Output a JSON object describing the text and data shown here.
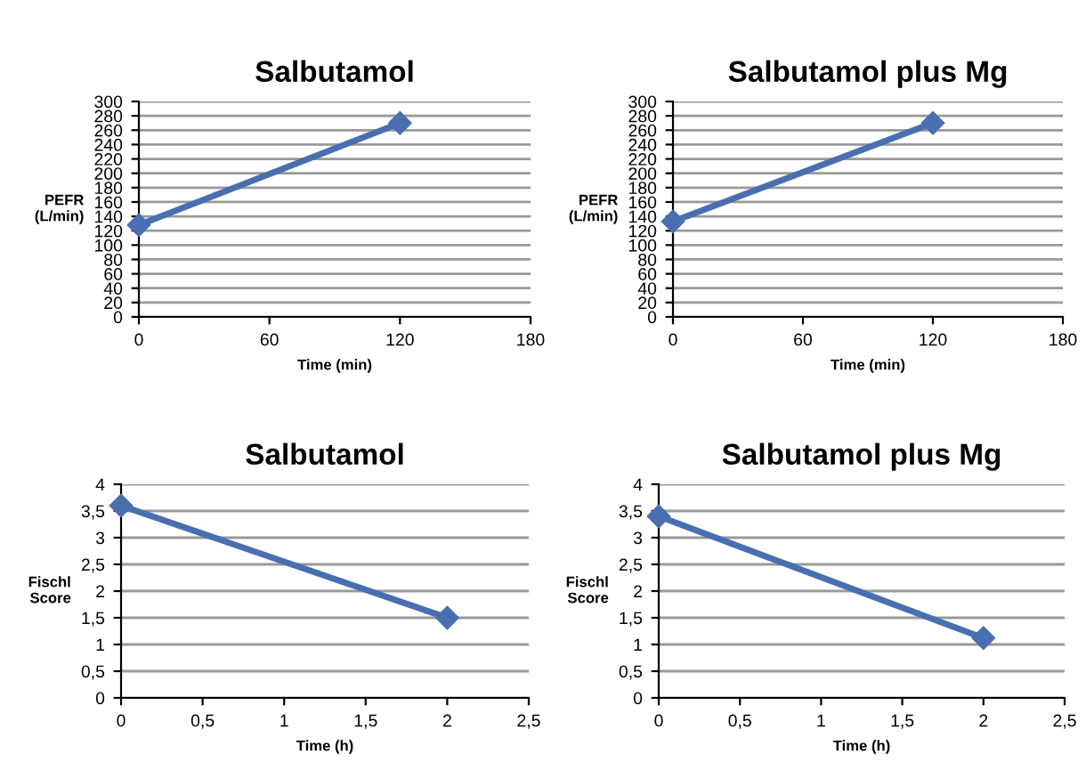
{
  "chart_data": [
    {
      "type": "line",
      "title": "Salbutamol",
      "xlabel": "Time (min)",
      "ylabel": "PEFR\n(L/min)",
      "x": [
        0,
        120
      ],
      "values": [
        128,
        270
      ],
      "color": "#4a6fb0",
      "marker": "diamond",
      "xlim": [
        0,
        180
      ],
      "xticks": [
        0,
        60,
        120,
        180
      ],
      "ylim": [
        0,
        300
      ],
      "yticks": [
        0,
        20,
        40,
        60,
        80,
        100,
        120,
        140,
        160,
        180,
        200,
        220,
        240,
        260,
        280,
        300
      ],
      "grid": "y"
    },
    {
      "type": "line",
      "title": "Salbutamol plus Mg",
      "xlabel": "Time (min)",
      "ylabel": "PEFR\n(L/min)",
      "x": [
        0,
        120
      ],
      "values": [
        133,
        270
      ],
      "color": "#4a6fb0",
      "marker": "diamond",
      "xlim": [
        0,
        180
      ],
      "xticks": [
        0,
        60,
        120,
        180
      ],
      "ylim": [
        0,
        300
      ],
      "yticks": [
        0,
        20,
        40,
        60,
        80,
        100,
        120,
        140,
        160,
        180,
        200,
        220,
        240,
        260,
        280,
        300
      ],
      "grid": "y"
    },
    {
      "type": "line",
      "title": "Salbutamol",
      "xlabel": "Time (h)",
      "ylabel": "Fischl\nScore",
      "x": [
        0,
        2
      ],
      "values": [
        3.6,
        1.5
      ],
      "color": "#4a6fb0",
      "marker": "diamond",
      "xlim": [
        0,
        2.5
      ],
      "xticks": [
        0,
        {
          "value": 0.5,
          "label": "0,5"
        },
        1,
        {
          "value": 1.5,
          "label": "1,5"
        },
        2,
        {
          "value": 2.5,
          "label": "2,5"
        }
      ],
      "ylim": [
        0,
        4
      ],
      "yticks": [
        0,
        {
          "value": 0.5,
          "label": "0,5"
        },
        1,
        {
          "value": 1.5,
          "label": "1,5"
        },
        2,
        {
          "value": 2.5,
          "label": "2,5"
        },
        3,
        {
          "value": 3.5,
          "label": "3,5"
        },
        4
      ],
      "grid": "y"
    },
    {
      "type": "line",
      "title": "Salbutamol plus Mg",
      "xlabel": "Time (h)",
      "ylabel": "Fischl\nScore",
      "x": [
        0,
        2
      ],
      "values": [
        3.4,
        1.12
      ],
      "color": "#4a6fb0",
      "marker": "diamond",
      "xlim": [
        0,
        2.5
      ],
      "xticks": [
        0,
        {
          "value": 0.5,
          "label": "0,5"
        },
        1,
        {
          "value": 1.5,
          "label": "1,5"
        },
        2,
        {
          "value": 2.5,
          "label": "2,5"
        }
      ],
      "ylim": [
        0,
        4
      ],
      "yticks": [
        0,
        {
          "value": 0.5,
          "label": "0,5"
        },
        1,
        {
          "value": 1.5,
          "label": "1,5"
        },
        2,
        {
          "value": 2.5,
          "label": "2,5"
        },
        3,
        {
          "value": 3.5,
          "label": "3,5"
        },
        4
      ],
      "grid": "y"
    }
  ]
}
